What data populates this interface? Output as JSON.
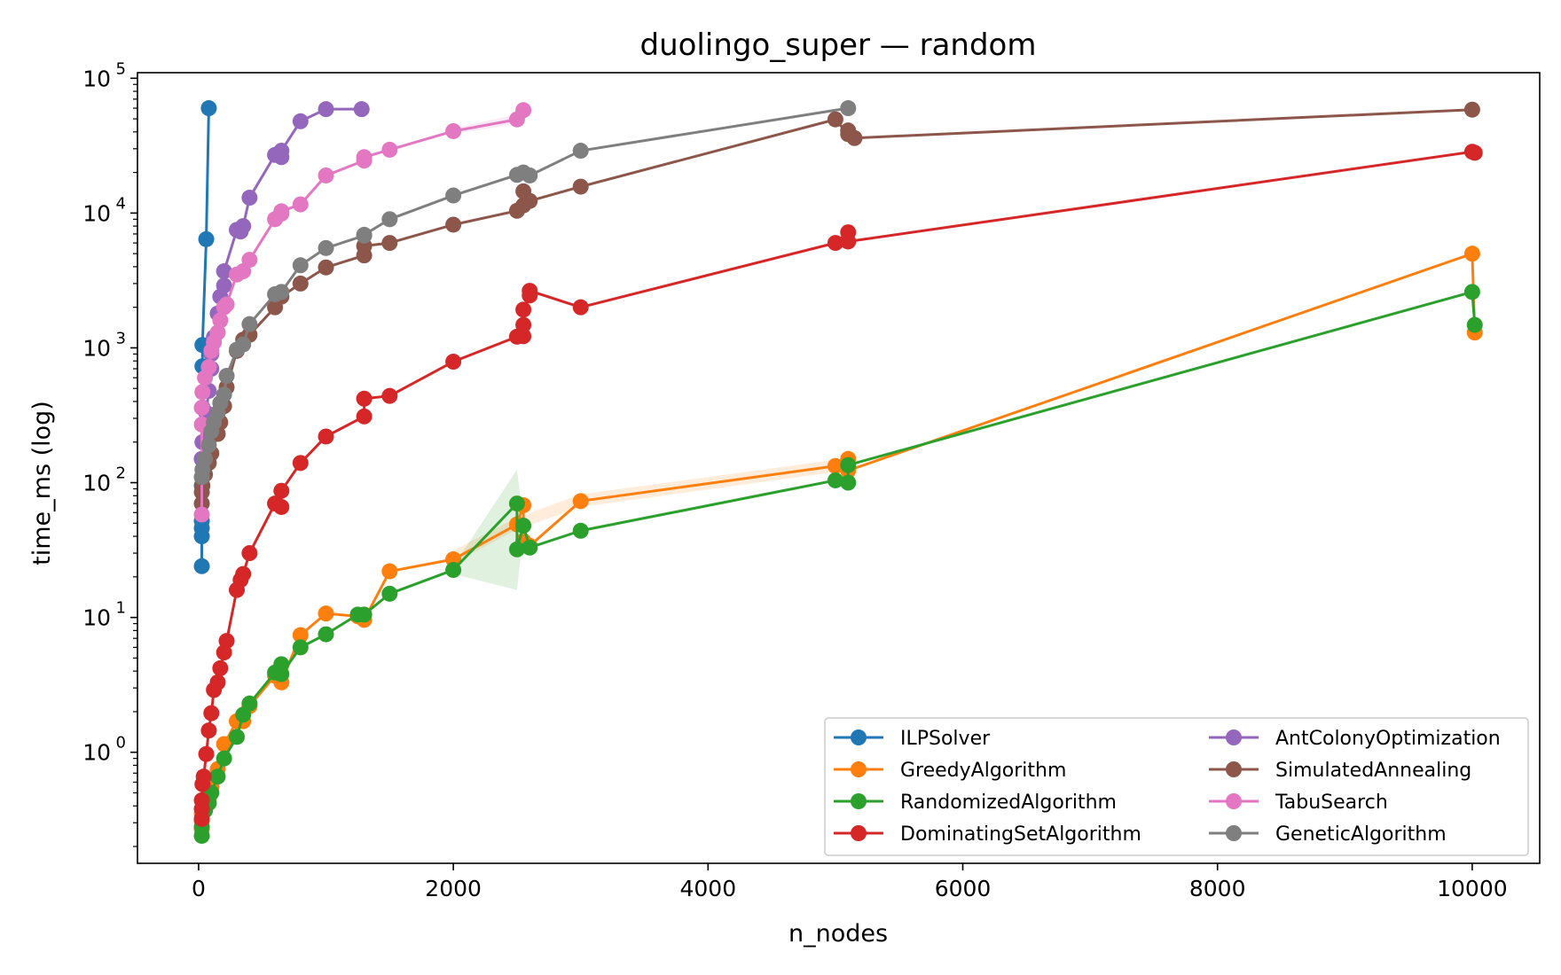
{
  "chart_data": {
    "type": "line",
    "title": "duolingo_super — random",
    "xlabel": "n_nodes",
    "ylabel": "time_ms (log)",
    "xlim": [
      -480,
      10530
    ],
    "ylim": [
      0.15,
      110000
    ],
    "yscale": "log",
    "xticks": [
      0,
      2000,
      4000,
      6000,
      8000,
      10000
    ],
    "yticks": [
      1,
      10,
      100,
      1000,
      10000,
      100000
    ],
    "ytick_labels": [
      {
        "base": "10",
        "exp": "0"
      },
      {
        "base": "10",
        "exp": "1"
      },
      {
        "base": "10",
        "exp": "2"
      },
      {
        "base": "10",
        "exp": "3"
      },
      {
        "base": "10",
        "exp": "4"
      },
      {
        "base": "10",
        "exp": "5"
      }
    ],
    "legend_position": "bottom-right",
    "legend_columns": 2,
    "grid": false,
    "series": [
      {
        "name": "ILPSolver",
        "color": "#1f77b4",
        "points": [
          [
            25,
            24
          ],
          [
            25,
            40
          ],
          [
            25,
            46
          ],
          [
            25,
            52
          ],
          [
            25,
            95
          ],
          [
            25,
            150
          ],
          [
            30,
            360
          ],
          [
            30,
            730
          ],
          [
            30,
            1050
          ],
          [
            60,
            6400
          ],
          [
            80,
            60000
          ]
        ]
      },
      {
        "name": "GreedyAlgorithm",
        "color": "#ff7f0e",
        "points": [
          [
            25,
            0.27
          ],
          [
            25,
            0.31
          ],
          [
            25,
            0.35
          ],
          [
            50,
            0.37
          ],
          [
            80,
            0.45
          ],
          [
            100,
            0.55
          ],
          [
            150,
            0.75
          ],
          [
            200,
            1.15
          ],
          [
            300,
            1.7
          ],
          [
            350,
            1.7
          ],
          [
            400,
            2.2
          ],
          [
            600,
            3.7
          ],
          [
            650,
            3.3
          ],
          [
            800,
            7.4
          ],
          [
            1000,
            10.7
          ],
          [
            1250,
            10.2
          ],
          [
            1300,
            9.6
          ],
          [
            1500,
            22
          ],
          [
            2000,
            27
          ],
          [
            2500,
            49
          ],
          [
            2550,
            68
          ],
          [
            2550,
            37
          ],
          [
            2600,
            34
          ],
          [
            3000,
            73
          ],
          [
            5000,
            133
          ],
          [
            5100,
            150
          ],
          [
            5100,
            123
          ],
          [
            10000,
            5000
          ],
          [
            10020,
            1300
          ]
        ],
        "band": [
          [
            1990,
            25,
            31
          ],
          [
            2500,
            45,
            55
          ],
          [
            3000,
            66,
            82
          ],
          [
            5000,
            120,
            148
          ]
        ]
      },
      {
        "name": "RandomizedAlgorithm",
        "color": "#2ca02c",
        "points": [
          [
            25,
            0.24
          ],
          [
            25,
            0.28
          ],
          [
            25,
            0.32
          ],
          [
            50,
            0.37
          ],
          [
            80,
            0.42
          ],
          [
            100,
            0.5
          ],
          [
            150,
            0.66
          ],
          [
            200,
            0.9
          ],
          [
            300,
            1.3
          ],
          [
            350,
            1.9
          ],
          [
            400,
            2.3
          ],
          [
            600,
            3.9
          ],
          [
            650,
            4.5
          ],
          [
            650,
            3.8
          ],
          [
            800,
            6
          ],
          [
            1000,
            7.5
          ],
          [
            1250,
            10.5
          ],
          [
            1300,
            10.5
          ],
          [
            1500,
            15
          ],
          [
            2000,
            22.5
          ],
          [
            2500,
            70
          ],
          [
            2500,
            32
          ],
          [
            2550,
            48
          ],
          [
            2600,
            33
          ],
          [
            3000,
            44
          ],
          [
            5000,
            104
          ],
          [
            5100,
            100
          ],
          [
            5100,
            135
          ],
          [
            10000,
            2600
          ],
          [
            10020,
            1480
          ]
        ],
        "band": [
          [
            2000,
            21,
            24
          ],
          [
            2500,
            16,
            125
          ],
          [
            2550,
            44,
            52
          ],
          [
            2600,
            31,
            35
          ]
        ]
      },
      {
        "name": "DominatingSetAlgorithm",
        "color": "#d62728",
        "points": [
          [
            25,
            0.32
          ],
          [
            25,
            0.38
          ],
          [
            25,
            0.44
          ],
          [
            30,
            0.58
          ],
          [
            40,
            0.66
          ],
          [
            60,
            0.97
          ],
          [
            80,
            1.45
          ],
          [
            100,
            1.95
          ],
          [
            120,
            2.9
          ],
          [
            150,
            3.3
          ],
          [
            170,
            4.2
          ],
          [
            200,
            5.5
          ],
          [
            220,
            6.7
          ],
          [
            300,
            16
          ],
          [
            330,
            19
          ],
          [
            350,
            21
          ],
          [
            400,
            30
          ],
          [
            600,
            70
          ],
          [
            650,
            66
          ],
          [
            650,
            87
          ],
          [
            800,
            140
          ],
          [
            1000,
            220
          ],
          [
            1300,
            310
          ],
          [
            1300,
            420
          ],
          [
            1500,
            440
          ],
          [
            2000,
            790
          ],
          [
            2500,
            1210
          ],
          [
            2550,
            1220
          ],
          [
            2550,
            1480
          ],
          [
            2550,
            1920
          ],
          [
            2600,
            2450
          ],
          [
            2600,
            2650
          ],
          [
            3000,
            2000
          ],
          [
            5000,
            6000
          ],
          [
            5100,
            7200
          ],
          [
            5100,
            6150
          ],
          [
            10000,
            28500
          ],
          [
            10020,
            28000
          ]
        ]
      },
      {
        "name": "AntColonyOptimization",
        "color": "#9467bd",
        "points": [
          [
            25,
            150
          ],
          [
            30,
            200
          ],
          [
            60,
            330
          ],
          [
            80,
            480
          ],
          [
            100,
            700
          ],
          [
            100,
            900
          ],
          [
            120,
            1200
          ],
          [
            150,
            1800
          ],
          [
            170,
            2400
          ],
          [
            200,
            2900
          ],
          [
            200,
            3700
          ],
          [
            300,
            7500
          ],
          [
            330,
            7300
          ],
          [
            350,
            8000
          ],
          [
            400,
            13000
          ],
          [
            600,
            27000
          ],
          [
            650,
            26000
          ],
          [
            650,
            29000
          ],
          [
            800,
            48000
          ],
          [
            1000,
            59000
          ],
          [
            1280,
            59000
          ]
        ]
      },
      {
        "name": "SimulatedAnnealing",
        "color": "#8c564b",
        "points": [
          [
            25,
            70
          ],
          [
            25,
            85
          ],
          [
            30,
            95
          ],
          [
            50,
            115
          ],
          [
            80,
            140
          ],
          [
            100,
            165
          ],
          [
            150,
            230
          ],
          [
            170,
            280
          ],
          [
            200,
            370
          ],
          [
            220,
            510
          ],
          [
            300,
            950
          ],
          [
            350,
            1150
          ],
          [
            400,
            1250
          ],
          [
            600,
            2000
          ],
          [
            650,
            2400
          ],
          [
            800,
            3000
          ],
          [
            1000,
            3950
          ],
          [
            1300,
            4850
          ],
          [
            1300,
            5700
          ],
          [
            1500,
            6000
          ],
          [
            2000,
            8200
          ],
          [
            2500,
            10400
          ],
          [
            2550,
            11400
          ],
          [
            2550,
            14500
          ],
          [
            2600,
            12300
          ],
          [
            3000,
            15700
          ],
          [
            5000,
            49500
          ],
          [
            5100,
            38500
          ],
          [
            5100,
            41000
          ],
          [
            5150,
            36000
          ],
          [
            10000,
            58500
          ]
        ]
      },
      {
        "name": "TabuSearch",
        "color": "#e377c2",
        "points": [
          [
            25,
            58
          ],
          [
            25,
            270
          ],
          [
            25,
            360
          ],
          [
            30,
            470
          ],
          [
            50,
            600
          ],
          [
            80,
            720
          ],
          [
            100,
            950
          ],
          [
            120,
            1100
          ],
          [
            150,
            1300
          ],
          [
            170,
            1600
          ],
          [
            200,
            2000
          ],
          [
            220,
            2100
          ],
          [
            300,
            3500
          ],
          [
            350,
            3700
          ],
          [
            400,
            4500
          ],
          [
            600,
            9000
          ],
          [
            650,
            9900
          ],
          [
            650,
            10300
          ],
          [
            800,
            11600
          ],
          [
            1000,
            19000
          ],
          [
            1300,
            24500
          ],
          [
            1300,
            26000
          ],
          [
            1500,
            29500
          ],
          [
            2000,
            40500
          ],
          [
            2500,
            49500
          ],
          [
            2550,
            58000
          ]
        ],
        "band": [
          [
            2000,
            38500,
            42500
          ],
          [
            2500,
            46000,
            54000
          ],
          [
            2550,
            55000,
            61000
          ]
        ]
      },
      {
        "name": "GeneticAlgorithm",
        "color": "#7f7f7f",
        "points": [
          [
            25,
            110
          ],
          [
            30,
            125
          ],
          [
            50,
            150
          ],
          [
            80,
            190
          ],
          [
            100,
            240
          ],
          [
            120,
            280
          ],
          [
            150,
            330
          ],
          [
            170,
            390
          ],
          [
            200,
            450
          ],
          [
            220,
            620
          ],
          [
            300,
            970
          ],
          [
            350,
            1060
          ],
          [
            400,
            1500
          ],
          [
            600,
            2500
          ],
          [
            650,
            2600
          ],
          [
            800,
            4100
          ],
          [
            1000,
            5500
          ],
          [
            1300,
            6800
          ],
          [
            1300,
            6900
          ],
          [
            1500,
            9000
          ],
          [
            2000,
            13500
          ],
          [
            2500,
            19200
          ],
          [
            2550,
            20000
          ],
          [
            2600,
            19000
          ],
          [
            3000,
            29000
          ],
          [
            5100,
            60000
          ]
        ]
      }
    ]
  }
}
